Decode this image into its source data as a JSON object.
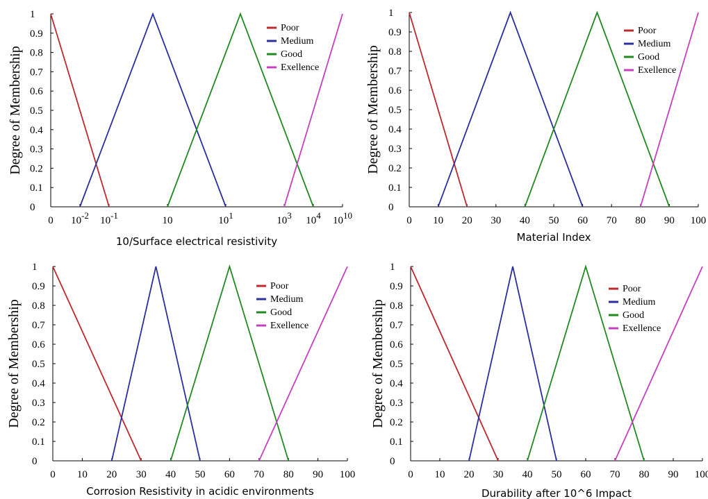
{
  "chart_data": [
    {
      "type": "line",
      "xlabel": "10/Surface electrical resistivity",
      "ylabel": "Degree of Membership",
      "ylim": [
        0,
        1
      ],
      "xlim": [
        0,
        100
      ],
      "x_scale": "categorical-log-labels",
      "y_ticks": [
        "0",
        "0.1",
        "0.2",
        "0.3",
        "0.4",
        "0.5",
        "0.6",
        "0.7",
        "0.8",
        "0.9",
        "1"
      ],
      "x_ticks": [
        {
          "base": "0",
          "exp": "",
          "at": 0
        },
        {
          "base": "10",
          "exp": "-2",
          "at": 10
        },
        {
          "base": "10",
          "exp": "-1",
          "at": 20
        },
        {
          "base": "10",
          "exp": "",
          "at": 40
        },
        {
          "base": "10",
          "exp": "1",
          "at": 60
        },
        {
          "base": "10",
          "exp": "3",
          "at": 80
        },
        {
          "base": "10",
          "exp": "4",
          "at": 90
        },
        {
          "base": "10",
          "exp": "10",
          "at": 100
        }
      ],
      "legend": [
        "Poor",
        "Medium",
        "Good",
        "Exellence"
      ],
      "legend_position": "top-right",
      "series": [
        {
          "name": "Poor",
          "color": "#c0282d",
          "points": [
            [
              0,
              1
            ],
            [
              20,
              0
            ]
          ]
        },
        {
          "name": "Medium",
          "color": "#2b2f9e",
          "points": [
            [
              10,
              0
            ],
            [
              35,
              1
            ],
            [
              60,
              0
            ]
          ]
        },
        {
          "name": "Good",
          "color": "#1f8a1f",
          "points": [
            [
              40,
              0
            ],
            [
              65,
              1
            ],
            [
              90,
              0
            ]
          ]
        },
        {
          "name": "Exellence",
          "color": "#c540c0",
          "points": [
            [
              80,
              0
            ],
            [
              100,
              1
            ]
          ]
        }
      ]
    },
    {
      "type": "line",
      "xlabel": "Material Index",
      "ylabel": "Degree of Membership",
      "ylim": [
        0,
        1
      ],
      "xlim": [
        0,
        100
      ],
      "y_ticks": [
        "0",
        "0.1",
        "0.2",
        "0.3",
        "0.4",
        "0.5",
        "0.6",
        "0.7",
        "0.8",
        "0.9",
        "1"
      ],
      "x_ticks": [
        {
          "base": "0",
          "exp": "",
          "at": 0
        },
        {
          "base": "10",
          "exp": "",
          "at": 10
        },
        {
          "base": "20",
          "exp": "",
          "at": 20
        },
        {
          "base": "30",
          "exp": "",
          "at": 30
        },
        {
          "base": "40",
          "exp": "",
          "at": 40
        },
        {
          "base": "50",
          "exp": "",
          "at": 50
        },
        {
          "base": "60",
          "exp": "",
          "at": 60
        },
        {
          "base": "70",
          "exp": "",
          "at": 70
        },
        {
          "base": "80",
          "exp": "",
          "at": 80
        },
        {
          "base": "90",
          "exp": "",
          "at": 90
        },
        {
          "base": "100",
          "exp": "",
          "at": 100
        }
      ],
      "legend": [
        "Poor",
        "Medium",
        "Good",
        "Exellence"
      ],
      "legend_position": "top-right",
      "series": [
        {
          "name": "Poor",
          "color": "#c0282d",
          "points": [
            [
              0,
              1
            ],
            [
              20,
              0
            ]
          ]
        },
        {
          "name": "Medium",
          "color": "#2b2f9e",
          "points": [
            [
              10,
              0
            ],
            [
              35,
              1
            ],
            [
              60,
              0
            ]
          ]
        },
        {
          "name": "Good",
          "color": "#1f8a1f",
          "points": [
            [
              40,
              0
            ],
            [
              65,
              1
            ],
            [
              90,
              0
            ]
          ]
        },
        {
          "name": "Exellence",
          "color": "#c540c0",
          "points": [
            [
              80,
              0
            ],
            [
              100,
              1
            ]
          ]
        }
      ]
    },
    {
      "type": "line",
      "xlabel": "Corrosion Resistivity in acidic environments",
      "ylabel": "Degree of Membership",
      "ylim": [
        0,
        1
      ],
      "xlim": [
        0,
        100
      ],
      "y_ticks": [
        "0",
        "0.1",
        "0.2",
        "0.3",
        "0.4",
        "0.5",
        "0.6",
        "0.7",
        "0.8",
        "0.9",
        "1"
      ],
      "x_ticks": [
        {
          "base": "0",
          "exp": "",
          "at": 0
        },
        {
          "base": "10",
          "exp": "",
          "at": 10
        },
        {
          "base": "20",
          "exp": "",
          "at": 20
        },
        {
          "base": "30",
          "exp": "",
          "at": 30
        },
        {
          "base": "40",
          "exp": "",
          "at": 40
        },
        {
          "base": "50",
          "exp": "",
          "at": 50
        },
        {
          "base": "60",
          "exp": "",
          "at": 60
        },
        {
          "base": "70",
          "exp": "",
          "at": 70
        },
        {
          "base": "80",
          "exp": "",
          "at": 80
        },
        {
          "base": "90",
          "exp": "",
          "at": 90
        },
        {
          "base": "100",
          "exp": "",
          "at": 100
        }
      ],
      "legend": [
        "Poor",
        "Medium",
        "Good",
        "Exellence"
      ],
      "legend_position": "top-right",
      "series": [
        {
          "name": "Poor",
          "color": "#c0282d",
          "points": [
            [
              0,
              1
            ],
            [
              30,
              0
            ]
          ]
        },
        {
          "name": "Medium",
          "color": "#2b2f9e",
          "points": [
            [
              20,
              0
            ],
            [
              35,
              1
            ],
            [
              50,
              0
            ]
          ]
        },
        {
          "name": "Good",
          "color": "#1f8a1f",
          "points": [
            [
              40,
              0
            ],
            [
              60,
              1
            ],
            [
              80,
              0
            ]
          ]
        },
        {
          "name": "Exellence",
          "color": "#c540c0",
          "points": [
            [
              70,
              0
            ],
            [
              100,
              1
            ]
          ]
        }
      ]
    },
    {
      "type": "line",
      "xlabel": "Durability after 10^6 Impact",
      "ylabel": "Degree of Membership",
      "ylim": [
        0,
        1
      ],
      "xlim": [
        0,
        100
      ],
      "y_ticks": [
        "0",
        "0.1",
        "0.2",
        "0.3",
        "0.4",
        "0.5",
        "0.6",
        "0.7",
        "0.8",
        "0.9",
        "1"
      ],
      "x_ticks": [
        {
          "base": "0",
          "exp": "",
          "at": 0
        },
        {
          "base": "10",
          "exp": "",
          "at": 10
        },
        {
          "base": "20",
          "exp": "",
          "at": 20
        },
        {
          "base": "30",
          "exp": "",
          "at": 30
        },
        {
          "base": "40",
          "exp": "",
          "at": 40
        },
        {
          "base": "50",
          "exp": "",
          "at": 50
        },
        {
          "base": "60",
          "exp": "",
          "at": 60
        },
        {
          "base": "70",
          "exp": "",
          "at": 70
        },
        {
          "base": "80",
          "exp": "",
          "at": 80
        },
        {
          "base": "90",
          "exp": "",
          "at": 90
        },
        {
          "base": "100",
          "exp": "",
          "at": 100
        }
      ],
      "legend": [
        "Poor",
        "Medium",
        "Good",
        "Exellence"
      ],
      "legend_position": "top-right",
      "series": [
        {
          "name": "Poor",
          "color": "#c0282d",
          "points": [
            [
              0,
              1
            ],
            [
              30,
              0
            ]
          ]
        },
        {
          "name": "Medium",
          "color": "#2b2f9e",
          "points": [
            [
              20,
              0
            ],
            [
              35,
              1
            ],
            [
              50,
              0
            ]
          ]
        },
        {
          "name": "Good",
          "color": "#1f8a1f",
          "points": [
            [
              40,
              0
            ],
            [
              60,
              1
            ],
            [
              80,
              0
            ]
          ]
        },
        {
          "name": "Exellence",
          "color": "#c540c0",
          "points": [
            [
              70,
              0
            ],
            [
              100,
              1
            ]
          ]
        }
      ]
    }
  ]
}
